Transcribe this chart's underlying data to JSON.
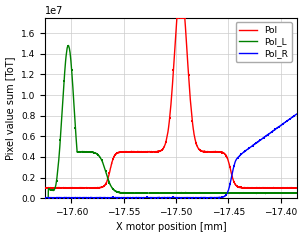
{
  "xlabel": "X motor position [mm]",
  "ylabel": "Pixel value sum [ToT]",
  "xlim": [
    -17.625,
    -17.385
  ],
  "ylim": [
    0,
    17500000.0
  ],
  "legend": [
    "Pol",
    "Pol_L",
    "Pol_R"
  ],
  "colors": {
    "Pol": "#ff0000",
    "Pol_L": "#008000",
    "Pol_R": "#0000ff"
  },
  "markersize": 2.0,
  "linewidth": 1.0,
  "background": "#ffffff"
}
